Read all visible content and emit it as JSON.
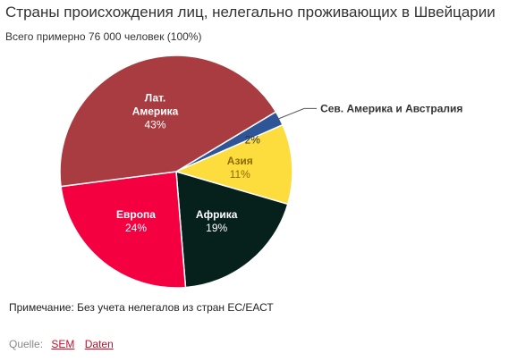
{
  "chart_data": {
    "type": "pie",
    "title": "Страны происхождения лиц, нелегально проживающих в Швейцарии",
    "subtitle": "Всего примерно 76 000 человек (100%)",
    "slices": [
      {
        "name": "Сев. Америка и Австралия",
        "value": 2,
        "label": "2%",
        "color": "#2e5597",
        "callout": true
      },
      {
        "name": "Азия",
        "value": 11,
        "label": "11%",
        "color": "#fddc3e",
        "text_color": "#8a6d00"
      },
      {
        "name": "Африка",
        "value": 19,
        "label": "19%",
        "color": "#06201c",
        "text_color": "#ffffff"
      },
      {
        "name": "Европа",
        "value": 24,
        "label": "24%",
        "color": "#f40040",
        "text_color": "#ffffff"
      },
      {
        "name": "Лат. Америка",
        "value": 43,
        "label": "43%",
        "color": "#a93c40",
        "text_color": "#ffffff",
        "name_lines": [
          "Лат.",
          "Америка"
        ]
      }
    ],
    "start_angle_deg": 59,
    "direction": "clockwise-from-start",
    "legend": "none"
  },
  "note": "Примечание: Без учета нелегалов из стран ЕС/ЕАСТ",
  "source": {
    "label": "Quelle:",
    "links": [
      "SEM",
      "Daten"
    ]
  }
}
